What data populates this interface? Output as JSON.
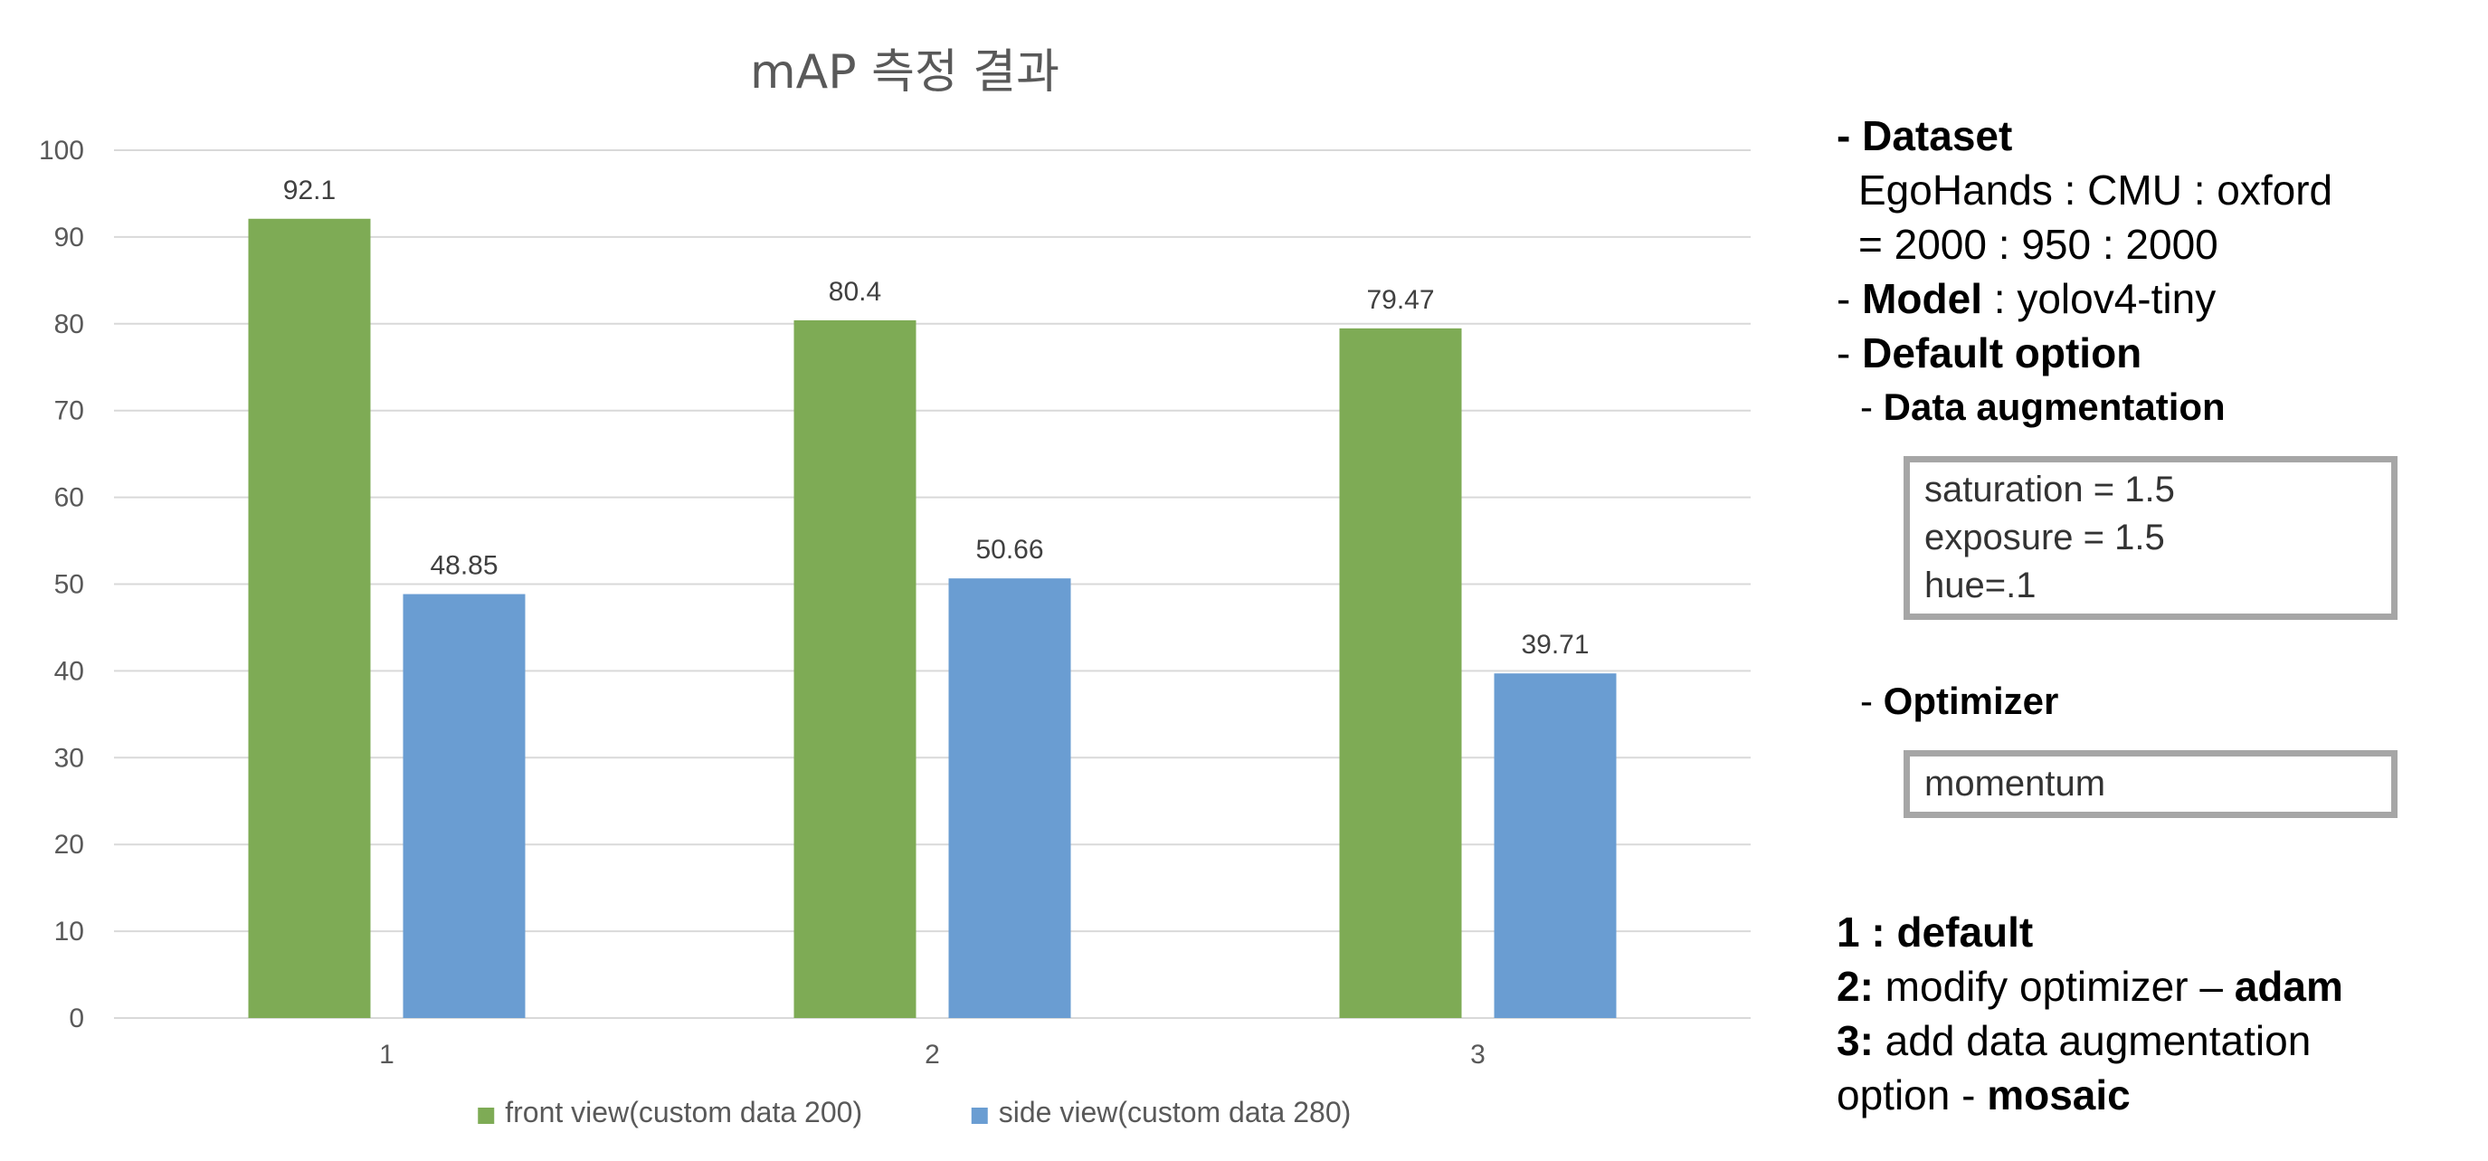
{
  "chart_data": {
    "type": "bar",
    "title": "mAP 측정 결과",
    "categories": [
      "1",
      "2",
      "3"
    ],
    "series": [
      {
        "name": "front view(custom data 200)",
        "color": "#7eab55",
        "values": [
          92.1,
          80.4,
          79.47
        ],
        "labels": [
          "92.1",
          "80.4",
          "79.47"
        ]
      },
      {
        "name": "side view(custom data 280)",
        "color": "#6a9dd2",
        "values": [
          48.85,
          50.66,
          39.71
        ],
        "labels": [
          "48.85",
          "50.66",
          "39.71"
        ]
      }
    ],
    "ylim": [
      0,
      100
    ],
    "yticks": [
      "0",
      "10",
      "20",
      "30",
      "40",
      "50",
      "60",
      "70",
      "80",
      "90",
      "100"
    ],
    "grid": true,
    "legend_position": "bottom"
  },
  "notes": {
    "dataset_prefix": "- ",
    "dataset_label": "Dataset",
    "dataset_line1": "EgoHands : CMU : oxford",
    "dataset_line2": "= 2000 : 950 : 2000",
    "model_prefix": "- ",
    "model_label": "Model",
    "model_value": " : yolov4-tiny",
    "default_prefix": "- ",
    "default_label": "Default option",
    "aug_prefix": "- ",
    "aug_label": "Data augmentation",
    "aug_items": [
      "saturation = 1.5",
      "exposure = 1.5",
      "hue=.1"
    ],
    "opt_prefix": "- ",
    "opt_label": "Optimizer",
    "opt_value": "momentum",
    "legend1": "1 : default",
    "legend2_num": "2:",
    "legend2_text": " modify optimizer – ",
    "legend2_bold": "adam",
    "legend3_num": "3:",
    "legend3_text": " add data augmentation",
    "legend3_text2": "option - ",
    "legend3_bold": "mosaic"
  }
}
